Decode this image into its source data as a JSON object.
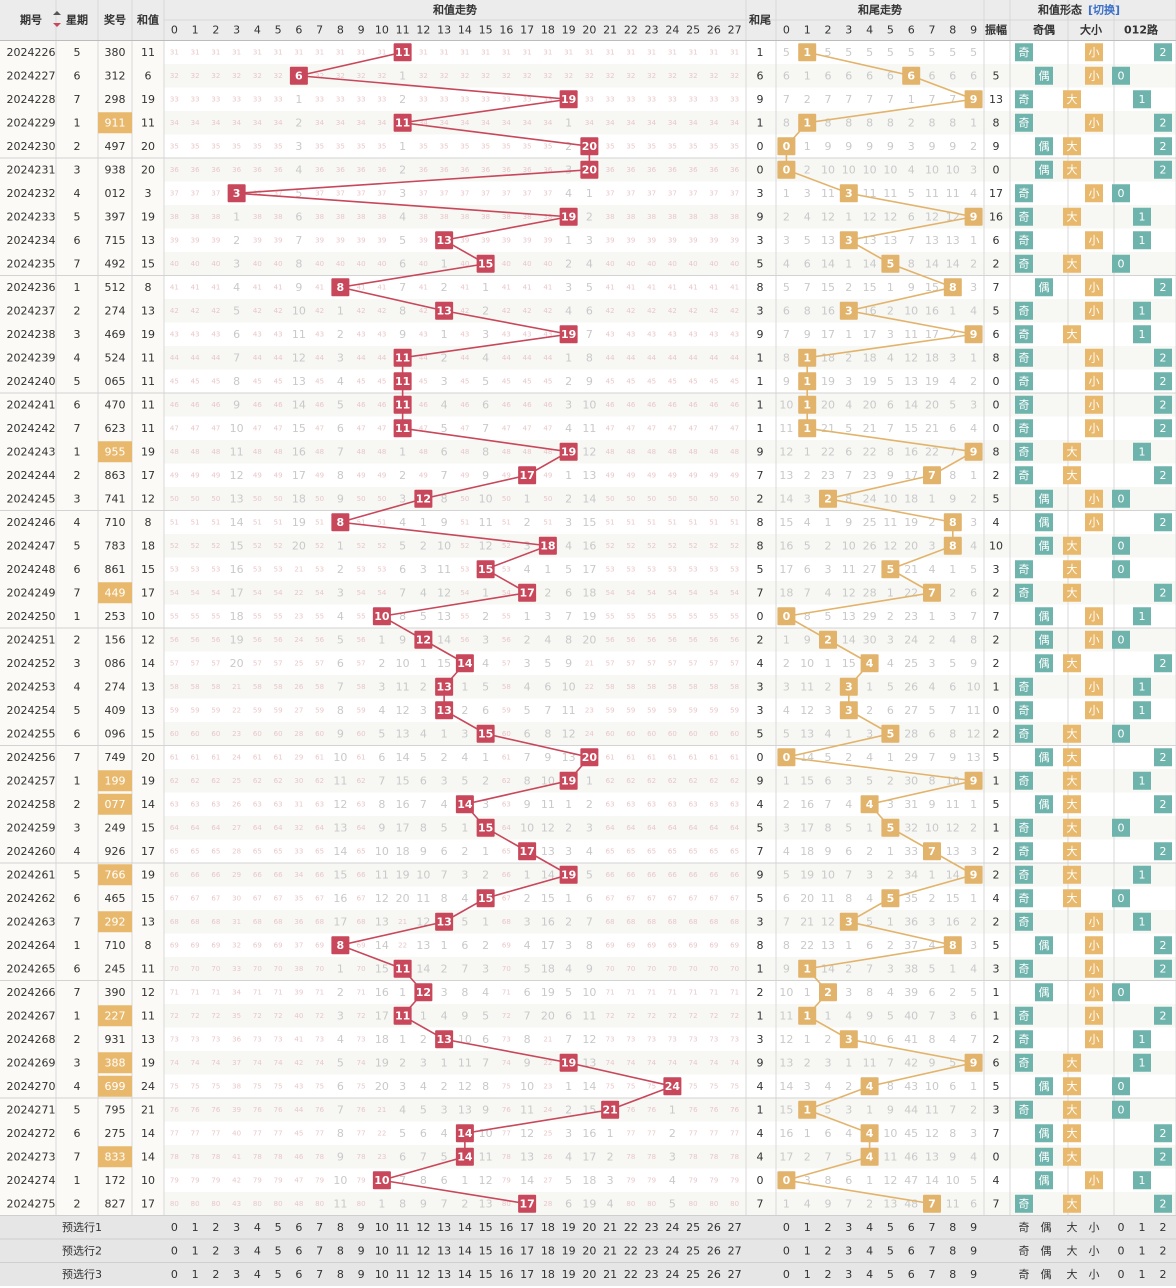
{
  "header": {
    "period": "期号",
    "week": "星期",
    "prize": "奖号",
    "sum": "和值",
    "sum_trend": "和值走势",
    "tail": "和尾",
    "tail_trend": "和尾走势",
    "amp": "振幅",
    "shape": "和值形态",
    "switch": "[切换]",
    "odd_even": "奇偶",
    "big_small": "大小",
    "route": "012路"
  },
  "labels": {
    "odd": "奇",
    "even": "偶",
    "big": "大",
    "small": "小"
  },
  "footer": {
    "rows": [
      "预选行1",
      "预选行2",
      "预选行3"
    ]
  },
  "colors": {
    "sum_ball": "#c8475a",
    "tail_ball": "#e2b36a",
    "teal": "#6fb3ad",
    "prize_hl": "#e8b96d",
    "header_bg": "#ececec",
    "footer_bg": "#e6e6e6"
  },
  "chart_data": {
    "type": "table",
    "sum_range": [
      0,
      27
    ],
    "tail_range": [
      0,
      9
    ],
    "rows": [
      {
        "period": "2024226",
        "week": "5",
        "prize": "380",
        "sum": 11,
        "tail": 1,
        "amp": ""
      },
      {
        "period": "2024227",
        "week": "6",
        "prize": "312",
        "sum": 6,
        "tail": 6,
        "amp": "5"
      },
      {
        "period": "2024228",
        "week": "7",
        "prize": "298",
        "sum": 19,
        "tail": 9,
        "amp": "13"
      },
      {
        "period": "2024229",
        "week": "1",
        "prize": "911",
        "sum": 11,
        "tail": 1,
        "amp": "8"
      },
      {
        "period": "2024230",
        "week": "2",
        "prize": "497",
        "sum": 20,
        "tail": 0,
        "amp": "9"
      },
      {
        "period": "2024231",
        "week": "3",
        "prize": "938",
        "sum": 20,
        "tail": 0,
        "amp": "0"
      },
      {
        "period": "2024232",
        "week": "4",
        "prize": "012",
        "sum": 3,
        "tail": 3,
        "amp": "17"
      },
      {
        "period": "2024233",
        "week": "5",
        "prize": "397",
        "sum": 19,
        "tail": 9,
        "amp": "16"
      },
      {
        "period": "2024234",
        "week": "6",
        "prize": "715",
        "sum": 13,
        "tail": 3,
        "amp": "6"
      },
      {
        "period": "2024235",
        "week": "7",
        "prize": "492",
        "sum": 15,
        "tail": 5,
        "amp": "2"
      },
      {
        "period": "2024236",
        "week": "1",
        "prize": "512",
        "sum": 8,
        "tail": 8,
        "amp": "7"
      },
      {
        "period": "2024237",
        "week": "2",
        "prize": "274",
        "sum": 13,
        "tail": 3,
        "amp": "5"
      },
      {
        "period": "2024238",
        "week": "3",
        "prize": "469",
        "sum": 19,
        "tail": 9,
        "amp": "6"
      },
      {
        "period": "2024239",
        "week": "4",
        "prize": "524",
        "sum": 11,
        "tail": 1,
        "amp": "8"
      },
      {
        "period": "2024240",
        "week": "5",
        "prize": "065",
        "sum": 11,
        "tail": 1,
        "amp": "0"
      },
      {
        "period": "2024241",
        "week": "6",
        "prize": "470",
        "sum": 11,
        "tail": 1,
        "amp": "0"
      },
      {
        "period": "2024242",
        "week": "7",
        "prize": "623",
        "sum": 11,
        "tail": 1,
        "amp": "0"
      },
      {
        "period": "2024243",
        "week": "1",
        "prize": "955",
        "sum": 19,
        "tail": 9,
        "amp": "8"
      },
      {
        "period": "2024244",
        "week": "2",
        "prize": "863",
        "sum": 17,
        "tail": 7,
        "amp": "2"
      },
      {
        "period": "2024245",
        "week": "3",
        "prize": "741",
        "sum": 12,
        "tail": 2,
        "amp": "5"
      },
      {
        "period": "2024246",
        "week": "4",
        "prize": "710",
        "sum": 8,
        "tail": 8,
        "amp": "4"
      },
      {
        "period": "2024247",
        "week": "5",
        "prize": "783",
        "sum": 18,
        "tail": 8,
        "amp": "10"
      },
      {
        "period": "2024248",
        "week": "6",
        "prize": "861",
        "sum": 15,
        "tail": 5,
        "amp": "3"
      },
      {
        "period": "2024249",
        "week": "7",
        "prize": "449",
        "sum": 17,
        "tail": 7,
        "amp": "2"
      },
      {
        "period": "2024250",
        "week": "1",
        "prize": "253",
        "sum": 10,
        "tail": 0,
        "amp": "7"
      },
      {
        "period": "2024251",
        "week": "2",
        "prize": "156",
        "sum": 12,
        "tail": 2,
        "amp": "2"
      },
      {
        "period": "2024252",
        "week": "3",
        "prize": "086",
        "sum": 14,
        "tail": 4,
        "amp": "2"
      },
      {
        "period": "2024253",
        "week": "4",
        "prize": "274",
        "sum": 13,
        "tail": 3,
        "amp": "1"
      },
      {
        "period": "2024254",
        "week": "5",
        "prize": "409",
        "sum": 13,
        "tail": 3,
        "amp": "0"
      },
      {
        "period": "2024255",
        "week": "6",
        "prize": "096",
        "sum": 15,
        "tail": 5,
        "amp": "2"
      },
      {
        "period": "2024256",
        "week": "7",
        "prize": "749",
        "sum": 20,
        "tail": 0,
        "amp": "5"
      },
      {
        "period": "2024257",
        "week": "1",
        "prize": "199",
        "sum": 19,
        "tail": 9,
        "amp": "1"
      },
      {
        "period": "2024258",
        "week": "2",
        "prize": "077",
        "sum": 14,
        "tail": 4,
        "amp": "5"
      },
      {
        "period": "2024259",
        "week": "3",
        "prize": "249",
        "sum": 15,
        "tail": 5,
        "amp": "1"
      },
      {
        "period": "2024260",
        "week": "4",
        "prize": "926",
        "sum": 17,
        "tail": 7,
        "amp": "2"
      },
      {
        "period": "2024261",
        "week": "5",
        "prize": "766",
        "sum": 19,
        "tail": 9,
        "amp": "2"
      },
      {
        "period": "2024262",
        "week": "6",
        "prize": "465",
        "sum": 15,
        "tail": 5,
        "amp": "4"
      },
      {
        "period": "2024263",
        "week": "7",
        "prize": "292",
        "sum": 13,
        "tail": 3,
        "amp": "2"
      },
      {
        "period": "2024264",
        "week": "1",
        "prize": "710",
        "sum": 8,
        "tail": 8,
        "amp": "5"
      },
      {
        "period": "2024265",
        "week": "6",
        "prize": "245",
        "sum": 11,
        "tail": 1,
        "amp": "3"
      },
      {
        "period": "2024266",
        "week": "7",
        "prize": "390",
        "sum": 12,
        "tail": 2,
        "amp": "1"
      },
      {
        "period": "2024267",
        "week": "1",
        "prize": "227",
        "sum": 11,
        "tail": 1,
        "amp": "1"
      },
      {
        "period": "2024268",
        "week": "2",
        "prize": "931",
        "sum": 13,
        "tail": 3,
        "amp": "2"
      },
      {
        "period": "2024269",
        "week": "3",
        "prize": "388",
        "sum": 19,
        "tail": 9,
        "amp": "6"
      },
      {
        "period": "2024270",
        "week": "4",
        "prize": "699",
        "sum": 24,
        "tail": 4,
        "amp": "5"
      },
      {
        "period": "2024271",
        "week": "5",
        "prize": "795",
        "sum": 21,
        "tail": 1,
        "amp": "3"
      },
      {
        "period": "2024272",
        "week": "6",
        "prize": "275",
        "sum": 14,
        "tail": 4,
        "amp": "7"
      },
      {
        "period": "2024273",
        "week": "7",
        "prize": "833",
        "sum": 14,
        "tail": 4,
        "amp": "0"
      },
      {
        "period": "2024274",
        "week": "1",
        "prize": "172",
        "sum": 10,
        "tail": 0,
        "amp": "4"
      },
      {
        "period": "2024275",
        "week": "2",
        "prize": "827",
        "sum": 17,
        "tail": 7,
        "amp": "7"
      }
    ]
  }
}
